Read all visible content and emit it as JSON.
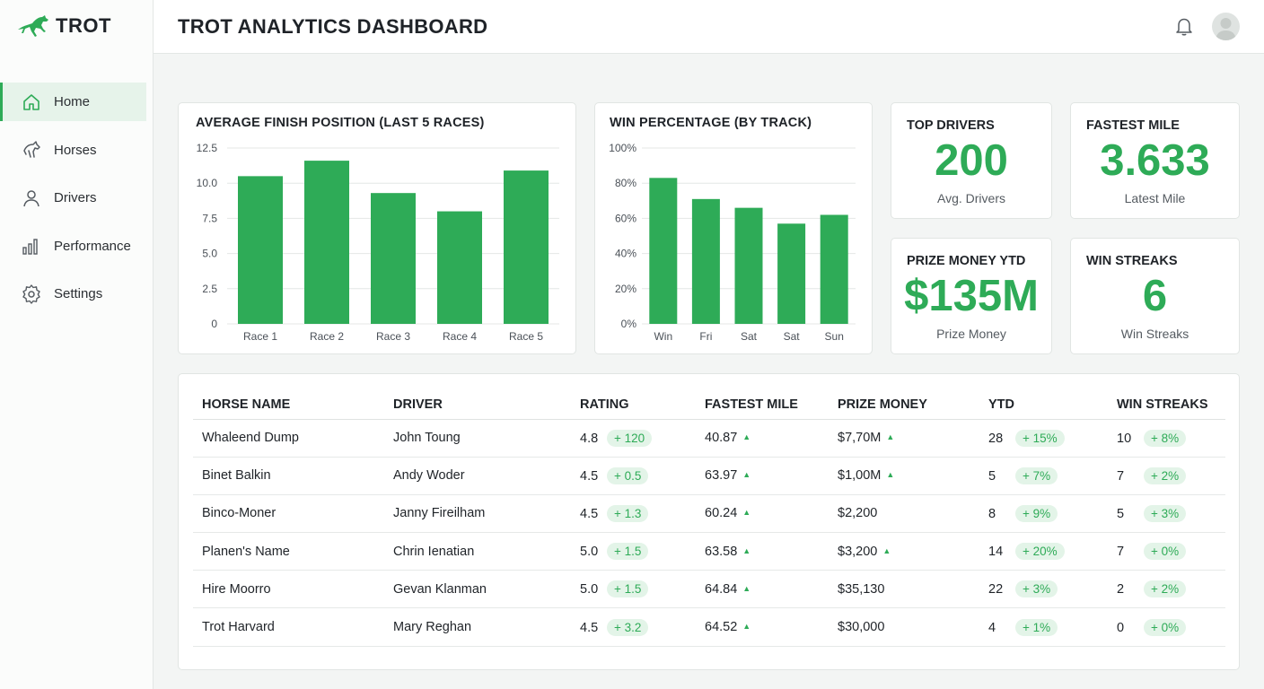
{
  "brand": {
    "name": "TROT"
  },
  "nav": [
    {
      "label": "Home",
      "icon": "home-icon",
      "active": true
    },
    {
      "label": "Horses",
      "icon": "horse-icon",
      "active": false
    },
    {
      "label": "Drivers",
      "icon": "user-icon",
      "active": false
    },
    {
      "label": "Performance",
      "icon": "bar-chart-icon",
      "active": false
    },
    {
      "label": "Settings",
      "icon": "gear-icon",
      "active": false
    }
  ],
  "header": {
    "title": "TROT ANALYTICS DASHBOARD"
  },
  "colors": {
    "accent": "#2eab57",
    "accent_soft": "#e3f4e8"
  },
  "stats": [
    {
      "title": "TOP DRIVERS",
      "value": "200",
      "sub": "Avg. Drivers"
    },
    {
      "title": "FASTEST MILE",
      "value": "3.633",
      "sub": "Latest Mile"
    },
    {
      "title": "PRIZE MONEY YTD",
      "value": "$135M",
      "sub": "Prize Money"
    },
    {
      "title": "WIN STREAKS",
      "value": "6",
      "sub": "Win Streaks"
    }
  ],
  "chart_data": [
    {
      "type": "bar",
      "title": "AVERAGE FINISH POSITION (LAST 5 RACES)",
      "categories": [
        "Race 1",
        "Race 2",
        "Race 3",
        "Race 4",
        "Race 5"
      ],
      "values": [
        10.5,
        11.6,
        9.3,
        8.0,
        10.9
      ],
      "ylim": [
        0,
        12.5
      ],
      "yticks": [
        "0",
        "2.5",
        "5.0",
        "7.5",
        "10.0",
        "12.5"
      ],
      "grid": true
    },
    {
      "type": "bar",
      "title": "WIN PERCENTAGE (BY TRACK)",
      "categories": [
        "Win",
        "Fri",
        "Sat",
        "Sat",
        "Sun"
      ],
      "values": [
        83,
        71,
        66,
        57,
        62
      ],
      "ylim": [
        0,
        100
      ],
      "yticks": [
        "0%",
        "20%",
        "40%",
        "60%",
        "80%",
        "100%"
      ],
      "grid": true
    }
  ],
  "table": {
    "headers": [
      "HORSE NAME",
      "DRIVER",
      "RATING",
      "FASTEST MILE",
      "PRIZE MONEY",
      "YTD",
      "WIN STREAKS"
    ],
    "rows": [
      {
        "horse": "Whaleend Dump",
        "driver": "John Toung",
        "rating": "4.8",
        "rating_delta": "+ 120",
        "mile": "40.87",
        "prize": "$7,70M",
        "prize_up": true,
        "ytd": "28",
        "ytd_delta": "+ 15%",
        "streak": "10",
        "streak_delta": "+ 8%"
      },
      {
        "horse": "Binet Balkin",
        "driver": "Andy Woder",
        "rating": "4.5",
        "rating_delta": "+ 0.5",
        "mile": "63.97",
        "prize": "$1,00M",
        "prize_up": true,
        "ytd": "5",
        "ytd_delta": "+ 7%",
        "streak": "7",
        "streak_delta": "+ 2%"
      },
      {
        "horse": "Binco-Moner",
        "driver": "Janny Fireilham",
        "rating": "4.5",
        "rating_delta": "+ 1.3",
        "mile": "60.24",
        "prize": "$2,200",
        "prize_up": false,
        "ytd": "8",
        "ytd_delta": "+ 9%",
        "streak": "5",
        "streak_delta": "+ 3%"
      },
      {
        "horse": "Planen's Name",
        "driver": "Chrin Ienatian",
        "rating": "5.0",
        "rating_delta": "+ 1.5",
        "mile": "63.58",
        "prize": "$3,200",
        "prize_up": true,
        "ytd": "14",
        "ytd_delta": "+ 20%",
        "streak": "7",
        "streak_delta": "+ 0%"
      },
      {
        "horse": "Hire Moorro",
        "driver": "Gevan Klanman",
        "rating": "5.0",
        "rating_delta": "+ 1.5",
        "mile": "64.84",
        "prize": "$35,130",
        "prize_up": false,
        "ytd": "22",
        "ytd_delta": "+ 3%",
        "streak": "2",
        "streak_delta": "+ 2%"
      },
      {
        "horse": "Trot Harvard",
        "driver": "Mary Reghan",
        "rating": "4.5",
        "rating_delta": "+ 3.2",
        "mile": "64.52",
        "prize": "$30,000",
        "prize_up": false,
        "ytd": "4",
        "ytd_delta": "+ 1%",
        "streak": "0",
        "streak_delta": "+ 0%"
      }
    ]
  }
}
